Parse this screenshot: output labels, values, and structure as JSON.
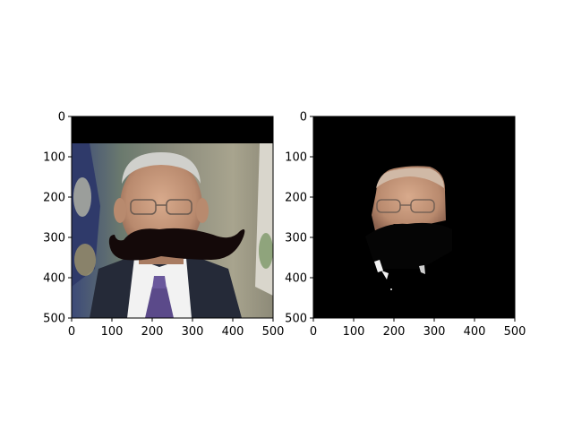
{
  "chart_data": [
    {
      "type": "image",
      "title": "",
      "xlabel": "",
      "ylabel": "",
      "xlim": [
        0,
        500
      ],
      "ylim": [
        500,
        0
      ],
      "xticks": [
        0,
        100,
        200,
        300,
        400,
        500
      ],
      "yticks": [
        0,
        100,
        200,
        300,
        400,
        500
      ],
      "content": "photo with mustache overlay"
    },
    {
      "type": "image",
      "title": "",
      "xlabel": "",
      "ylabel": "",
      "xlim": [
        0,
        500
      ],
      "ylim": [
        500,
        0
      ],
      "xticks": [
        0,
        100,
        200,
        300,
        400,
        500
      ],
      "yticks": [
        0,
        100,
        200,
        300,
        400,
        500
      ],
      "content": "segmented face on black background"
    }
  ],
  "colors": {
    "frame": "#000000",
    "mustache": "#140909",
    "skin": "#c69a7e",
    "suit": "#252a38",
    "shirt": "#f2f2f2",
    "tie": "#5b4a8a",
    "backdrop": "#5b6a6a"
  }
}
